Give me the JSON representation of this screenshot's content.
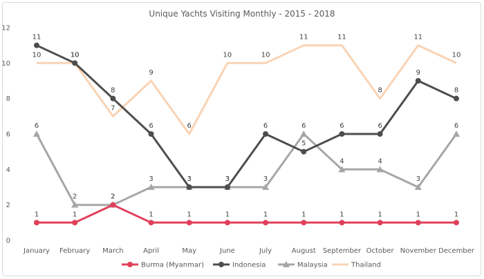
{
  "chart_data": {
    "type": "line",
    "title": "Unique Yachts Visiting Monthly - 2015 - 2018",
    "xlabel": "",
    "ylabel": "",
    "ylim": [
      0,
      12
    ],
    "yticks": [
      0,
      2,
      4,
      6,
      8,
      10,
      12
    ],
    "grid": false,
    "legend_position": "bottom",
    "categories": [
      "January",
      "February",
      "March",
      "April",
      "May",
      "June",
      "July",
      "August",
      "September",
      "October",
      "November",
      "December"
    ],
    "series": [
      {
        "name": "Burma (Myanmar)",
        "color": "#e0405a",
        "marker": "circle",
        "values": [
          1,
          1,
          2,
          1,
          1,
          1,
          1,
          1,
          1,
          1,
          1,
          1
        ]
      },
      {
        "name": "Indonesia",
        "color": "#4d4d4d",
        "marker": "circle",
        "values": [
          11,
          10,
          8,
          6,
          3,
          3,
          6,
          5,
          6,
          6,
          9,
          8
        ]
      },
      {
        "name": "Malaysia",
        "color": "#a6a6a6",
        "marker": "triangle",
        "values": [
          6,
          2,
          2,
          3,
          3,
          3,
          3,
          6,
          4,
          4,
          3,
          6
        ]
      },
      {
        "name": "Thailand",
        "color": "#f9d3b4",
        "marker": "none",
        "values": [
          10,
          10,
          7,
          9,
          6,
          10,
          10,
          11,
          11,
          8,
          11,
          10
        ]
      }
    ]
  }
}
